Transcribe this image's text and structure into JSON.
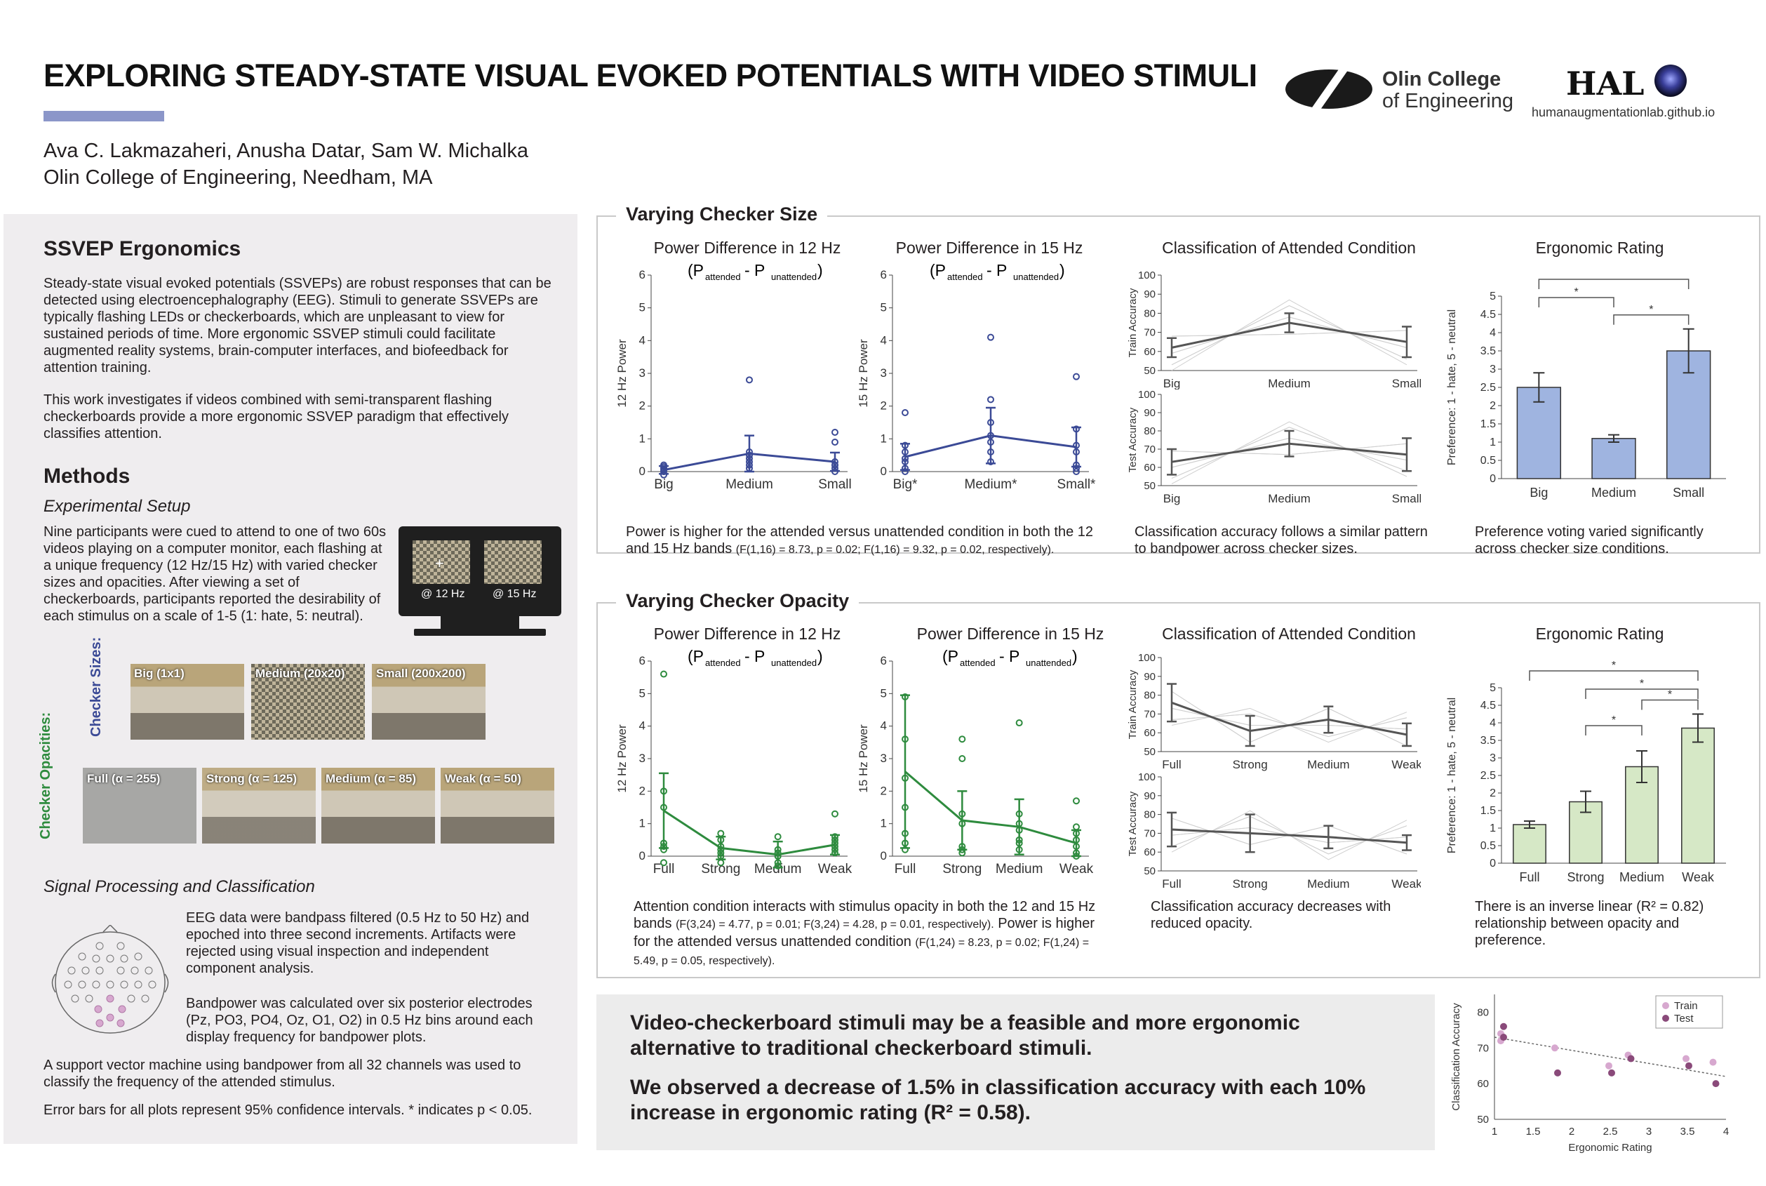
{
  "header": {
    "title": "EXPLORING STEADY-STATE VISUAL EVOKED POTENTIALS WITH VIDEO STIMULI",
    "authors": "Ava C. Lakmazaheri, Anusha Datar, Sam W. Michalka",
    "affiliation": "Olin College of Engineering, Needham, MA",
    "olin_line1": "Olin College",
    "olin_line2": "of Engineering",
    "hal_logo": "HAL",
    "hal_url": "humanaugmentationlab.github.io"
  },
  "left": {
    "ergonomics_heading": "SSVEP Ergonomics",
    "ergonomics_p1": "Steady-state visual evoked potentials (SSVEPs) are robust responses that can be detected using electroencephalography (EEG). Stimuli to generate SSVEPs are typically flashing LEDs or checkerboards, which are unpleasant to view for sustained periods of time. More ergonomic SSVEP stimuli could facilitate augmented reality systems, brain-computer interfaces, and biofeedback for attention training.",
    "ergonomics_p2": "This work investigates if videos combined with semi-transparent flashing checkerboards provide a more ergonomic SSVEP paradigm that effectively classifies attention.",
    "methods_heading": "Methods",
    "setup_heading": "Experimental Setup",
    "setup_text": "Nine participants were cued to attend to one of two 60s videos playing on a computer monitor, each flashing at a unique frequency (12 Hz/15 Hz) with varied checker sizes and opacities. After viewing a set of checkerboards, participants reported the desirability of each stimulus on a scale of 1-5 (1: hate, 5: neutral).",
    "monitor_left": "@ 12 Hz",
    "monitor_right": "@ 15 Hz",
    "checker_sizes_label": "Checker Sizes:",
    "checker_sizes": [
      "Big (1x1)",
      "Medium (20x20)",
      "Small (200x200)"
    ],
    "checker_opacities_label": "Checker Opacities:",
    "checker_opacities": [
      "Full (α = 255)",
      "Strong (α = 125)",
      "Medium (α = 85)",
      "Weak (α = 50)"
    ],
    "signal_heading": "Signal Processing and Classification",
    "signal_p1": "EEG data were bandpass filtered (0.5 Hz to 50 Hz) and epoched into three second increments. Artifacts were rejected using visual inspection and independent component analysis.",
    "signal_p2": "Bandpower was calculated over six posterior electrodes (Pz, PO3, PO4, Oz, O1, O2) in 0.5 Hz bins around each display frequency for bandpower plots.",
    "signal_p3": "A support vector machine using bandpower from all 32 channels was used to classify the frequency of the attended stimulus.",
    "signal_p4": "Error bars for all plots represent 95% confidence intervals. * indicates p < 0.05."
  },
  "size_section": {
    "title": "Varying Checker Size",
    "plot1_title": "Power Difference in 12 Hz",
    "plot2_title": "Power Difference in 15 Hz",
    "plot3_title": "Classification of Attended Condition",
    "plot4_title": "Ergonomic Rating",
    "caption1": "Power is higher for the attended versus unattended condition in both the 12 and 15 Hz bands",
    "caption1_small": "(F(1,16) = 8.73, p = 0.02; F(1,16) = 9.32, p = 0.02, respectively).",
    "caption2": "Classification accuracy follows a similar pattern to bandpower across checker sizes.",
    "caption3": "Preference voting varied significantly across checker size conditions."
  },
  "opacity_section": {
    "title": "Varying Checker Opacity",
    "plot1_title": "Power Difference in 12 Hz",
    "plot2_title": "Power Difference in 15 Hz",
    "plot3_title": "Classification of Attended Condition",
    "plot4_title": "Ergonomic Rating",
    "caption1": "Attention condition interacts with stimulus opacity in both the 12 and 15 Hz bands",
    "caption1_small_a": "(F(3,24) = 4.77, p = 0.01; F(3,24) = 4.28, p = 0.01, respectively).",
    "caption1_b": "Power is higher for the attended versus unattended condition",
    "caption1_small_b": "(F(1,24) = 8.23, p = 0.02; F(1,24) = 5.49, p = 0.05, respectively).",
    "caption2": "Classification accuracy decreases with reduced opacity.",
    "caption3": "There is an inverse linear (R² = 0.82) relationship between opacity and preference."
  },
  "conclusion": {
    "line1": "Video-checkerboard stimuli may be a feasible and more ergonomic alternative to traditional checkerboard stimuli.",
    "line2": "We observed a decrease of 1.5% in classification accuracy with each 10% increase in ergonomic rating (R² = 0.58)."
  },
  "colors": {
    "blue": "#3b4a96",
    "green": "#2e8b3e",
    "bar_blue": "#9fb4e0",
    "bar_green": "#d6e8c6",
    "gray_line": "#555555"
  },
  "chart_data": [
    {
      "id": "size_12hz",
      "type": "line",
      "ylabel": "12 Hz Power",
      "categories": [
        "Big",
        "Medium",
        "Small"
      ],
      "ylim": [
        0,
        6
      ],
      "yticks": [
        0,
        1,
        2,
        3,
        4,
        5,
        6
      ],
      "means": [
        0.05,
        0.55,
        0.3
      ],
      "err": [
        0.12,
        0.55,
        0.28
      ],
      "points": [
        [
          0.0,
          0.1,
          0.15,
          -0.1,
          0.05,
          0.2,
          0.0
        ],
        [
          2.8,
          0.6,
          0.3,
          0.1,
          0.2,
          0.5,
          0.4
        ],
        [
          1.2,
          0.9,
          0.2,
          0.1,
          0.3,
          0.0,
          0.2
        ]
      ]
    },
    {
      "id": "size_15hz",
      "type": "line",
      "ylabel": "15 Hz Power",
      "categories": [
        "Big*",
        "Medium*",
        "Small*"
      ],
      "ylim": [
        0,
        6
      ],
      "yticks": [
        0,
        1,
        2,
        3,
        4,
        5,
        6
      ],
      "means": [
        0.45,
        1.1,
        0.75
      ],
      "err": [
        0.4,
        0.85,
        0.6
      ],
      "points": [
        [
          1.8,
          0.8,
          0.4,
          0.1,
          0.0,
          0.3,
          0.6
        ],
        [
          4.1,
          2.2,
          1.5,
          0.6,
          0.3,
          0.9,
          1.1
        ],
        [
          2.9,
          1.3,
          0.6,
          0.2,
          0.1,
          0.0,
          0.8
        ]
      ]
    },
    {
      "id": "size_train",
      "type": "line",
      "ylabel": "Train Accuracy",
      "categories": [
        "Big",
        "Medium",
        "Small"
      ],
      "ylim": [
        50,
        100
      ],
      "yticks": [
        50,
        60,
        70,
        80,
        90,
        100
      ],
      "means": [
        62,
        75,
        65
      ],
      "err": [
        5,
        5,
        8
      ]
    },
    {
      "id": "size_test",
      "type": "line",
      "ylabel": "Test Accuracy",
      "categories": [
        "Big",
        "Medium",
        "Small"
      ],
      "ylim": [
        50,
        100
      ],
      "yticks": [
        50,
        60,
        70,
        80,
        90,
        100
      ],
      "means": [
        63,
        73,
        67
      ],
      "err": [
        7,
        7,
        9
      ]
    },
    {
      "id": "size_rating",
      "type": "bar",
      "ylabel": "Preference: 1 - hate, 5 - neutral",
      "categories": [
        "Big",
        "Medium",
        "Small"
      ],
      "ylim": [
        0,
        5
      ],
      "yticks": [
        0,
        0.5,
        1,
        1.5,
        2,
        2.5,
        3,
        3.5,
        4,
        4.5,
        5
      ],
      "values": [
        2.5,
        1.1,
        3.5
      ],
      "err": [
        0.4,
        0.1,
        0.6
      ],
      "significance": [
        [
          "Big",
          "Small"
        ],
        [
          "Big",
          "Medium"
        ],
        [
          "Medium",
          "Small"
        ]
      ]
    },
    {
      "id": "op_12hz",
      "type": "line",
      "ylabel": "12 Hz Power",
      "categories": [
        "Full",
        "Strong",
        "Medium",
        "Weak"
      ],
      "ylim": [
        0,
        6
      ],
      "yticks": [
        0,
        1,
        2,
        3,
        4,
        5,
        6
      ],
      "means": [
        1.4,
        0.25,
        0.05,
        0.35
      ],
      "err": [
        1.15,
        0.35,
        0.4,
        0.3
      ],
      "points": [
        [
          5.6,
          2.0,
          1.5,
          0.4,
          0.2,
          -0.2,
          0.3
        ],
        [
          0.7,
          0.5,
          0.2,
          0.0,
          -0.2,
          0.3,
          0.1
        ],
        [
          0.6,
          0.2,
          0.0,
          -0.3,
          -0.2,
          0.1,
          0.0
        ],
        [
          1.3,
          0.5,
          0.3,
          0.1,
          0.2,
          0.6,
          0.4
        ]
      ]
    },
    {
      "id": "op_15hz",
      "type": "line",
      "ylabel": "15 Hz Power",
      "categories": [
        "Full",
        "Strong",
        "Medium",
        "Weak"
      ],
      "ylim": [
        0,
        6
      ],
      "yticks": [
        0,
        1,
        2,
        3,
        4,
        5,
        6
      ],
      "means": [
        2.6,
        1.1,
        0.9,
        0.4
      ],
      "err": [
        2.35,
        0.9,
        0.85,
        0.4
      ],
      "points": [
        [
          4.9,
          3.6,
          2.4,
          0.7,
          0.4,
          0.2,
          1.5
        ],
        [
          3.6,
          3.0,
          1.0,
          0.3,
          0.2,
          0.1,
          1.3
        ],
        [
          4.1,
          1.0,
          0.8,
          0.5,
          0.4,
          0.2,
          1.3
        ],
        [
          1.7,
          0.9,
          0.5,
          0.3,
          0.1,
          0.0,
          0.7
        ]
      ]
    },
    {
      "id": "op_train",
      "type": "line",
      "ylabel": "Train Accuracy",
      "categories": [
        "Full",
        "Strong",
        "Medium",
        "Weak"
      ],
      "ylim": [
        50,
        100
      ],
      "yticks": [
        50,
        60,
        70,
        80,
        90,
        100
      ],
      "means": [
        76,
        61,
        67,
        59
      ],
      "err": [
        10,
        8,
        7,
        6
      ]
    },
    {
      "id": "op_test",
      "type": "line",
      "ylabel": "Test Accuracy",
      "categories": [
        "Full",
        "Strong",
        "Medium",
        "Weak"
      ],
      "ylim": [
        50,
        100
      ],
      "yticks": [
        50,
        60,
        70,
        80,
        90,
        100
      ],
      "means": [
        72,
        70,
        68,
        65
      ],
      "err": [
        9,
        10,
        6,
        4
      ]
    },
    {
      "id": "op_rating",
      "type": "bar",
      "ylabel": "Preference: 1 - hate, 5 - neutral",
      "categories": [
        "Full",
        "Strong",
        "Medium",
        "Weak"
      ],
      "ylim": [
        0,
        5
      ],
      "yticks": [
        0,
        0.5,
        1,
        1.5,
        2,
        2.5,
        3,
        3.5,
        4,
        4.5,
        5
      ],
      "values": [
        1.1,
        1.75,
        2.75,
        3.85
      ],
      "err": [
        0.1,
        0.3,
        0.45,
        0.4
      ],
      "significance": [
        [
          "Full",
          "Weak"
        ],
        [
          "Strong",
          "Weak"
        ],
        [
          "Medium",
          "Weak"
        ],
        [
          "Strong",
          "Medium"
        ]
      ]
    },
    {
      "id": "scatter_accuracy",
      "type": "scatter",
      "xlabel": "Ergonomic Rating",
      "ylabel": "Classification Accuracy",
      "xlim": [
        1,
        4
      ],
      "ylim": [
        50,
        85
      ],
      "xticks": [
        1,
        1.5,
        2,
        2.5,
        3,
        3.5,
        4
      ],
      "yticks": [
        50,
        60,
        70,
        80
      ],
      "series": [
        {
          "name": "Train",
          "x": [
            1.1,
            1.1,
            1.8,
            2.5,
            2.75,
            3.5,
            3.85
          ],
          "y": [
            74,
            72,
            70,
            65,
            68,
            67,
            66
          ]
        },
        {
          "name": "Test",
          "x": [
            1.1,
            1.1,
            1.8,
            2.5,
            2.75,
            3.5,
            3.85
          ],
          "y": [
            76,
            73,
            63,
            63,
            67,
            65,
            60
          ]
        }
      ]
    }
  ]
}
